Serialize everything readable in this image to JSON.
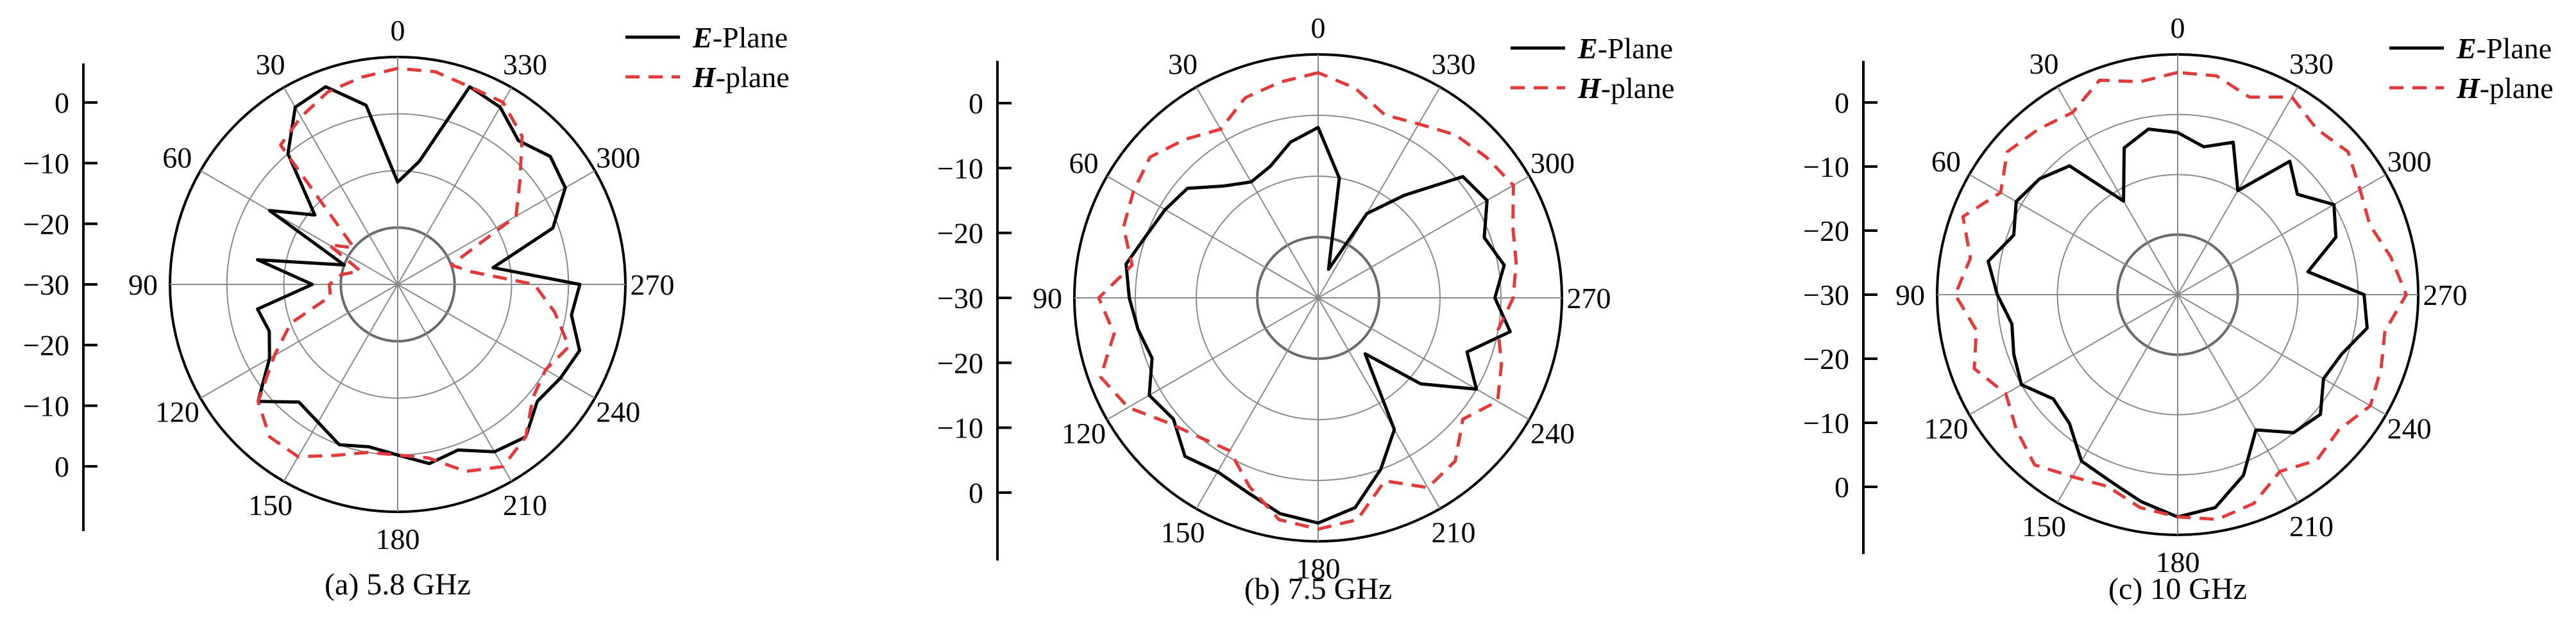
{
  "chart_data": [
    {
      "type": "polar",
      "caption": "(a) 5.8 GHz",
      "r_ticks": [
        "0",
        "−10",
        "−20",
        "−30",
        "−20",
        "−10",
        "0"
      ],
      "angle_labels": [
        "0",
        "30",
        "60",
        "90",
        "120",
        "150",
        "180",
        "210",
        "240",
        "270",
        "300",
        "330"
      ],
      "rlim": [
        -40,
        0
      ],
      "legend": [
        {
          "name": "E-Plane",
          "style": "solid",
          "color": "#000000"
        },
        {
          "name": "H-plane",
          "style": "dashed",
          "color": "#e03a3a"
        }
      ],
      "angles_deg": [
        0,
        10,
        20,
        30,
        40,
        50,
        60,
        70,
        80,
        90,
        100,
        110,
        120,
        130,
        140,
        150,
        160,
        170,
        180,
        190,
        200,
        210,
        220,
        230,
        240,
        250,
        260,
        270,
        280,
        290,
        300,
        310,
        320,
        330,
        340,
        350
      ],
      "series": [
        {
          "name": "E-Plane",
          "values_db": [
            -22,
            -8,
            -3,
            -4,
            -10,
            -21,
            -14,
            -30,
            -15,
            -25,
            -15,
            -16,
            -14,
            -8,
            -13,
            -12,
            -10,
            -11,
            -10,
            -8,
            -9,
            -6,
            -5,
            -8,
            -7,
            -6,
            -9,
            -8,
            -23,
            -11,
            -6,
            -5,
            -7,
            -4,
            -3,
            -18
          ]
        },
        {
          "name": "H-plane",
          "values_db": [
            -2,
            -3,
            -4,
            -6,
            -8,
            -30,
            -26,
            -33,
            -30,
            -28,
            -28,
            -20,
            -15,
            -8,
            -5,
            -5,
            -8,
            -10,
            -10,
            -9,
            -5,
            -3,
            -5,
            -9,
            -10,
            -8,
            -12,
            -16,
            -27,
            -30,
            -16,
            -12,
            -6,
            -3,
            -3,
            -2
          ]
        }
      ]
    },
    {
      "type": "polar",
      "caption": "(b) 7.5 GHz",
      "r_ticks": [
        "0",
        "−10",
        "−20",
        "−30",
        "−20",
        "−10",
        "0"
      ],
      "angle_labels": [
        "0",
        "30",
        "60",
        "90",
        "120",
        "150",
        "180",
        "210",
        "240",
        "270",
        "300",
        "330"
      ],
      "rlim": [
        -40,
        0
      ],
      "legend": [
        {
          "name": "E-Plane",
          "style": "solid",
          "color": "#000000"
        },
        {
          "name": "H-plane",
          "style": "dashed",
          "color": "#e03a3a"
        }
      ],
      "angles_deg": [
        0,
        10,
        20,
        30,
        40,
        50,
        60,
        70,
        80,
        90,
        100,
        110,
        120,
        130,
        140,
        150,
        160,
        170,
        180,
        190,
        200,
        210,
        220,
        230,
        240,
        250,
        260,
        270,
        280,
        290,
        300,
        310,
        320,
        330,
        340,
        350
      ],
      "series": [
        {
          "name": "E-Plane",
          "values_db": [
            -12,
            -14,
            -17,
            -18,
            -16,
            -12,
            -11,
            -10,
            -8,
            -9,
            -10,
            -11,
            -8,
            -9,
            -6,
            -7,
            -6,
            -4,
            -3,
            -5,
            -10,
            -15,
            -28,
            -18,
            -10,
            -14,
            -8,
            -11,
            -9,
            -11,
            -8,
            -9,
            -18,
            -24,
            -35,
            -20
          ]
        },
        {
          "name": "H-plane",
          "values_db": [
            -3,
            -4,
            -5,
            -8,
            -6,
            -4,
            -5,
            -6,
            -9,
            -4,
            -6,
            -2,
            -4,
            -8,
            -10,
            -11,
            -7,
            -3,
            -2,
            -3,
            -8,
            -4,
            -5,
            -9,
            -6,
            -8,
            -10,
            -8,
            -7,
            -6,
            -3,
            -4,
            -5,
            -7,
            -8,
            -5
          ]
        }
      ]
    },
    {
      "type": "polar",
      "caption": "(c) 10 GHz",
      "r_ticks": [
        "0",
        "−10",
        "−20",
        "−30",
        "−20",
        "−10",
        "0"
      ],
      "angle_labels": [
        "0",
        "30",
        "60",
        "90",
        "120",
        "150",
        "180",
        "210",
        "240",
        "270",
        "300",
        "330"
      ],
      "rlim": [
        -40,
        0
      ],
      "legend": [
        {
          "name": "E-Plane",
          "style": "solid",
          "color": "#000000"
        },
        {
          "name": "H-plane",
          "style": "dashed",
          "color": "#e03a3a"
        }
      ],
      "angles_deg": [
        0,
        10,
        20,
        30,
        40,
        50,
        60,
        70,
        80,
        90,
        100,
        110,
        120,
        130,
        140,
        150,
        160,
        170,
        180,
        190,
        200,
        210,
        220,
        230,
        240,
        250,
        260,
        270,
        280,
        290,
        300,
        310,
        320,
        330,
        340,
        350
      ],
      "series": [
        {
          "name": "E-Plane",
          "values_db": [
            -13,
            -12,
            -14,
            -22,
            -12,
            -10,
            -9,
            -11,
            -8,
            -10,
            -12,
            -11,
            -10,
            -13,
            -12,
            -8,
            -7,
            -5,
            -3,
            -4,
            -8,
            -14,
            -10,
            -9,
            -12,
            -11,
            -8,
            -9,
            -18,
            -12,
            -10,
            -14,
            -11,
            -20,
            -13,
            -15
          ]
        },
        {
          "name": "H-plane",
          "values_db": [
            -3,
            -4,
            -2,
            -5,
            -4,
            -3,
            -6,
            -2,
            -5,
            -3,
            -6,
            -4,
            -7,
            -5,
            -3,
            -5,
            -6,
            -4,
            -3,
            -2,
            -3,
            -6,
            -4,
            -5,
            -3,
            -4,
            -5,
            -2,
            -4,
            -6,
            -5,
            -3,
            -4,
            -2,
            -5,
            -3
          ]
        }
      ]
    }
  ]
}
